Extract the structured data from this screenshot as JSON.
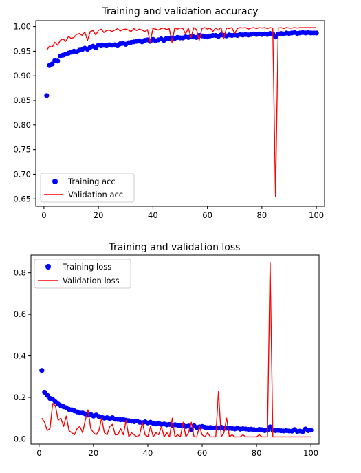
{
  "chart_data": [
    {
      "type": "scatter+line",
      "title": "Training and validation accuracy",
      "xlabel": "",
      "ylabel": "",
      "xlim": [
        -3,
        103
      ],
      "ylim": [
        0.635,
        1.012
      ],
      "xticks": [
        0,
        20,
        40,
        60,
        80,
        100
      ],
      "yticks": [
        0.65,
        0.7,
        0.75,
        0.8,
        0.85,
        0.9,
        0.95,
        1.0
      ],
      "xtick_labels": [
        "0",
        "20",
        "40",
        "60",
        "80",
        "100"
      ],
      "ytick_labels": [
        "0.65",
        "0.70",
        "0.75",
        "0.80",
        "0.85",
        "0.90",
        "0.95",
        "1.00"
      ],
      "legend_position": "lower-left",
      "series": [
        {
          "name": "Training acc",
          "style": "points",
          "color": "#0000ff",
          "x": [
            1,
            2,
            3,
            4,
            5,
            6,
            7,
            8,
            9,
            10,
            11,
            12,
            13,
            14,
            15,
            16,
            17,
            18,
            19,
            20,
            21,
            22,
            23,
            24,
            25,
            26,
            27,
            28,
            29,
            30,
            31,
            32,
            33,
            34,
            35,
            36,
            37,
            38,
            39,
            40,
            41,
            42,
            43,
            44,
            45,
            46,
            47,
            48,
            49,
            50,
            51,
            52,
            53,
            54,
            55,
            56,
            57,
            58,
            59,
            60,
            61,
            62,
            63,
            64,
            65,
            66,
            67,
            68,
            69,
            70,
            71,
            72,
            73,
            74,
            75,
            76,
            77,
            78,
            79,
            80,
            81,
            82,
            83,
            84,
            85,
            86,
            87,
            88,
            89,
            90,
            91,
            92,
            93,
            94,
            95,
            96,
            97,
            98,
            99,
            100
          ],
          "y": [
            0.86,
            0.921,
            0.924,
            0.931,
            0.93,
            0.94,
            0.942,
            0.944,
            0.946,
            0.948,
            0.95,
            0.949,
            0.952,
            0.953,
            0.956,
            0.954,
            0.958,
            0.96,
            0.957,
            0.962,
            0.961,
            0.962,
            0.961,
            0.963,
            0.962,
            0.963,
            0.961,
            0.965,
            0.966,
            0.964,
            0.967,
            0.968,
            0.969,
            0.97,
            0.971,
            0.969,
            0.972,
            0.973,
            0.97,
            0.974,
            0.971,
            0.973,
            0.975,
            0.972,
            0.976,
            0.975,
            0.977,
            0.976,
            0.978,
            0.977,
            0.977,
            0.979,
            0.978,
            0.98,
            0.979,
            0.978,
            0.982,
            0.981,
            0.98,
            0.979,
            0.981,
            0.982,
            0.982,
            0.98,
            0.983,
            0.982,
            0.981,
            0.983,
            0.982,
            0.983,
            0.982,
            0.984,
            0.983,
            0.984,
            0.983,
            0.984,
            0.985,
            0.984,
            0.985,
            0.984,
            0.985,
            0.984,
            0.986,
            0.985,
            0.979,
            0.985,
            0.986,
            0.985,
            0.987,
            0.986,
            0.987,
            0.988,
            0.986,
            0.987,
            0.988,
            0.987,
            0.988,
            0.987,
            0.987,
            0.987
          ]
        },
        {
          "name": "Validation acc",
          "style": "line",
          "color": "#ff0000",
          "x": [
            1,
            2,
            3,
            4,
            5,
            6,
            7,
            8,
            9,
            10,
            11,
            12,
            13,
            14,
            15,
            16,
            17,
            18,
            19,
            20,
            21,
            22,
            23,
            24,
            25,
            26,
            27,
            28,
            29,
            30,
            31,
            32,
            33,
            34,
            35,
            36,
            37,
            38,
            39,
            40,
            41,
            42,
            43,
            44,
            45,
            46,
            47,
            48,
            49,
            50,
            51,
            52,
            53,
            54,
            55,
            56,
            57,
            58,
            59,
            60,
            61,
            62,
            63,
            64,
            65,
            66,
            67,
            68,
            69,
            70,
            71,
            72,
            73,
            74,
            75,
            76,
            77,
            78,
            79,
            80,
            81,
            82,
            83,
            84,
            85,
            86,
            87,
            88,
            89,
            90,
            91,
            92,
            93,
            94,
            95,
            96,
            97,
            98,
            99,
            100
          ],
          "y": [
            0.952,
            0.96,
            0.958,
            0.968,
            0.962,
            0.972,
            0.975,
            0.97,
            0.98,
            0.976,
            0.978,
            0.984,
            0.986,
            0.982,
            0.989,
            0.972,
            0.99,
            0.992,
            0.983,
            0.992,
            0.995,
            0.988,
            0.992,
            0.993,
            0.99,
            0.993,
            0.996,
            0.991,
            0.994,
            0.995,
            0.993,
            0.99,
            0.996,
            0.992,
            0.995,
            0.993,
            0.99,
            0.994,
            0.968,
            0.996,
            0.995,
            0.993,
            0.996,
            0.997,
            0.994,
            0.996,
            0.968,
            0.997,
            0.995,
            0.997,
            0.996,
            0.985,
            0.997,
            0.978,
            0.998,
            0.994,
            0.972,
            0.996,
            0.998,
            0.995,
            0.997,
            0.99,
            0.997,
            0.993,
            0.998,
            0.976,
            0.997,
            0.996,
            0.998,
            0.986,
            0.996,
            0.998,
            0.997,
            0.998,
            0.995,
            0.997,
            0.998,
            0.996,
            0.998,
            0.997,
            0.998,
            0.996,
            0.998,
            0.997,
            0.655,
            0.997,
            0.998,
            0.996,
            0.998,
            0.997,
            0.997,
            0.998,
            0.997,
            0.998,
            0.998,
            0.998,
            0.998,
            0.998,
            0.998,
            0.998
          ]
        }
      ]
    },
    {
      "type": "scatter+line",
      "title": "Training and validation loss",
      "xlabel": "",
      "ylabel": "",
      "xlim": [
        -3,
        103
      ],
      "ylim": [
        -0.025,
        0.885
      ],
      "xticks": [
        0,
        20,
        40,
        60,
        80,
        100
      ],
      "yticks": [
        0.0,
        0.2,
        0.4,
        0.6,
        0.8
      ],
      "xtick_labels": [
        "0",
        "20",
        "40",
        "60",
        "80",
        "100"
      ],
      "ytick_labels": [
        "0.0",
        "0.2",
        "0.4",
        "0.6",
        "0.8"
      ],
      "legend_position": "upper-left",
      "series": [
        {
          "name": "Training loss",
          "style": "points",
          "color": "#0000ff",
          "x": [
            1,
            2,
            3,
            4,
            5,
            6,
            7,
            8,
            9,
            10,
            11,
            12,
            13,
            14,
            15,
            16,
            17,
            18,
            19,
            20,
            21,
            22,
            23,
            24,
            25,
            26,
            27,
            28,
            29,
            30,
            31,
            32,
            33,
            34,
            35,
            36,
            37,
            38,
            39,
            40,
            41,
            42,
            43,
            44,
            45,
            46,
            47,
            48,
            49,
            50,
            51,
            52,
            53,
            54,
            55,
            56,
            57,
            58,
            59,
            60,
            61,
            62,
            63,
            64,
            65,
            66,
            67,
            68,
            69,
            70,
            71,
            72,
            73,
            74,
            75,
            76,
            77,
            78,
            79,
            80,
            81,
            82,
            83,
            84,
            85,
            86,
            87,
            88,
            89,
            90,
            91,
            92,
            93,
            94,
            95,
            96,
            97,
            98,
            99,
            100
          ],
          "y": [
            0.33,
            0.225,
            0.21,
            0.195,
            0.19,
            0.178,
            0.168,
            0.16,
            0.155,
            0.15,
            0.142,
            0.14,
            0.135,
            0.13,
            0.125,
            0.125,
            0.12,
            0.115,
            0.118,
            0.11,
            0.115,
            0.108,
            0.105,
            0.1,
            0.102,
            0.098,
            0.102,
            0.095,
            0.094,
            0.092,
            0.093,
            0.09,
            0.088,
            0.085,
            0.083,
            0.086,
            0.08,
            0.078,
            0.082,
            0.077,
            0.08,
            0.075,
            0.072,
            0.076,
            0.07,
            0.072,
            0.068,
            0.07,
            0.066,
            0.068,
            0.066,
            0.063,
            0.065,
            0.06,
            0.062,
            0.045,
            0.063,
            0.055,
            0.058,
            0.06,
            0.056,
            0.054,
            0.055,
            0.053,
            0.054,
            0.052,
            0.056,
            0.05,
            0.052,
            0.051,
            0.05,
            0.048,
            0.052,
            0.047,
            0.049,
            0.048,
            0.046,
            0.047,
            0.045,
            0.043,
            0.046,
            0.044,
            0.04,
            0.042,
            0.058,
            0.042,
            0.04,
            0.041,
            0.039,
            0.038,
            0.04,
            0.038,
            0.037,
            0.045,
            0.036,
            0.038,
            0.035,
            0.048,
            0.04,
            0.042
          ]
        },
        {
          "name": "Validation loss",
          "style": "line",
          "color": "#ff0000",
          "x": [
            1,
            2,
            3,
            4,
            5,
            6,
            7,
            8,
            9,
            10,
            11,
            12,
            13,
            14,
            15,
            16,
            17,
            18,
            19,
            20,
            21,
            22,
            23,
            24,
            25,
            26,
            27,
            28,
            29,
            30,
            31,
            32,
            33,
            34,
            35,
            36,
            37,
            38,
            39,
            40,
            41,
            42,
            43,
            44,
            45,
            46,
            47,
            48,
            49,
            50,
            51,
            52,
            53,
            54,
            55,
            56,
            57,
            58,
            59,
            60,
            61,
            62,
            63,
            64,
            65,
            66,
            67,
            68,
            69,
            70,
            71,
            72,
            73,
            74,
            75,
            76,
            77,
            78,
            79,
            80,
            81,
            82,
            83,
            84,
            85,
            86,
            87,
            88,
            89,
            90,
            91,
            92,
            93,
            94,
            95,
            96,
            97,
            98,
            99,
            100
          ],
          "y": [
            0.1,
            0.08,
            0.04,
            0.05,
            0.17,
            0.16,
            0.09,
            0.1,
            0.06,
            0.11,
            0.04,
            0.03,
            0.02,
            0.05,
            0.06,
            0.03,
            0.09,
            0.14,
            0.05,
            0.03,
            0.02,
            0.04,
            0.1,
            0.03,
            0.02,
            0.06,
            0.07,
            0.02,
            0.02,
            0.05,
            0.02,
            0.09,
            0.01,
            0.03,
            0.02,
            0.01,
            0.02,
            0.08,
            0.02,
            0.01,
            0.06,
            0.01,
            0.03,
            0.02,
            0.06,
            0.01,
            0.03,
            0.01,
            0.1,
            0.01,
            0.02,
            0.01,
            0.08,
            0.01,
            0.03,
            0.08,
            0.01,
            0.01,
            0.06,
            0.02,
            0.01,
            0.03,
            0.01,
            0.01,
            0.01,
            0.23,
            0.01,
            0.03,
            0.1,
            0.01,
            0.02,
            0.01,
            0.01,
            0.01,
            0.02,
            0.01,
            0.01,
            0.01,
            0.01,
            0.01,
            0.02,
            0.01,
            0.01,
            0.01,
            0.85,
            0.01,
            0.01,
            0.01,
            0.01,
            0.01,
            0.01,
            0.01,
            0.01,
            0.01,
            0.01,
            0.01,
            0.01,
            0.01,
            0.01,
            0.01
          ]
        }
      ]
    }
  ]
}
